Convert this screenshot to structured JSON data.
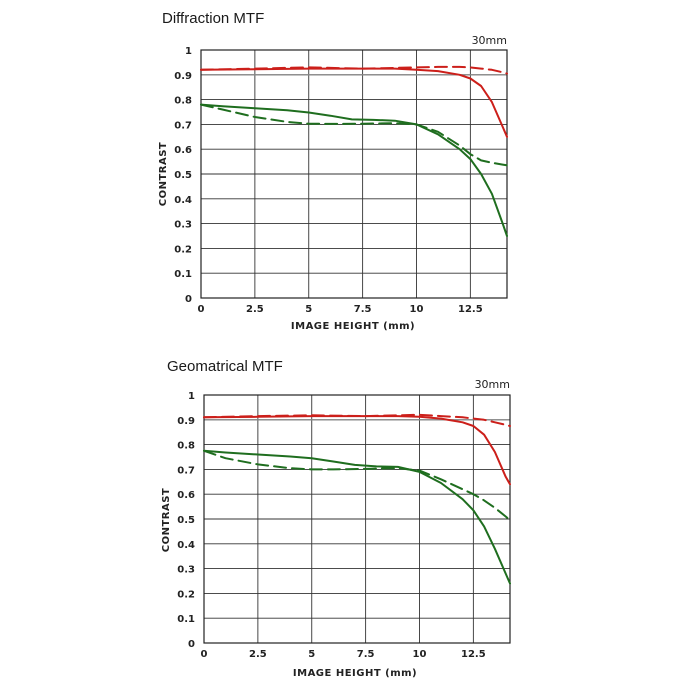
{
  "colors": {
    "red": "#cc1f1a",
    "green": "#1f6e1f",
    "grid": "#333333",
    "ref_line": "#888888"
  },
  "chart_data": [
    {
      "type": "line",
      "title": "Diffraction MTF",
      "corner_label": "30mm",
      "xlabel": "IMAGE HEIGHT (mm)",
      "ylabel": "CONTRAST",
      "xlim": [
        0,
        14.2
      ],
      "ylim": [
        0,
        1
      ],
      "xticks": [
        "0",
        "2.5",
        "5",
        "7.5",
        "10",
        "12.5"
      ],
      "xtick_values": [
        0,
        2.5,
        5,
        7.5,
        10,
        12.5
      ],
      "yticks": [
        "0",
        "0.1",
        "0.2",
        "0.3",
        "0.4",
        "0.5",
        "0.6",
        "0.7",
        "0.8",
        "0.9",
        "1"
      ],
      "grid": true,
      "reference_y": 0.9,
      "series": [
        {
          "color": "red",
          "dash": false,
          "x": [
            0,
            2.5,
            5,
            7.5,
            9,
            10,
            11,
            12,
            12.5,
            13,
            13.5,
            14,
            14.2
          ],
          "y": [
            0.92,
            0.922,
            0.925,
            0.925,
            0.925,
            0.92,
            0.915,
            0.9,
            0.885,
            0.855,
            0.79,
            0.69,
            0.65
          ]
        },
        {
          "color": "red",
          "dash": true,
          "x": [
            0,
            2.5,
            5,
            7.5,
            9,
            10,
            11,
            12,
            12.5,
            13,
            13.5,
            14,
            14.2
          ],
          "y": [
            0.92,
            0.925,
            0.93,
            0.925,
            0.928,
            0.93,
            0.932,
            0.932,
            0.93,
            0.925,
            0.92,
            0.91,
            0.905
          ]
        },
        {
          "color": "green",
          "dash": false,
          "x": [
            0,
            1,
            2.5,
            4,
            5,
            6,
            7,
            8,
            9,
            10,
            11,
            12,
            12.5,
            13,
            13.5,
            14,
            14.2
          ],
          "y": [
            0.78,
            0.773,
            0.765,
            0.757,
            0.748,
            0.735,
            0.72,
            0.718,
            0.715,
            0.7,
            0.66,
            0.6,
            0.56,
            0.5,
            0.42,
            0.3,
            0.25
          ]
        },
        {
          "color": "green",
          "dash": true,
          "x": [
            0,
            1,
            2.5,
            4,
            5,
            6,
            7.5,
            9,
            10,
            11,
            12,
            12.5,
            13,
            13.5,
            14,
            14.2
          ],
          "y": [
            0.78,
            0.76,
            0.73,
            0.71,
            0.703,
            0.702,
            0.703,
            0.705,
            0.7,
            0.67,
            0.615,
            0.58,
            0.555,
            0.545,
            0.538,
            0.535
          ]
        }
      ]
    },
    {
      "type": "line",
      "title": "Geomatrical MTF",
      "corner_label": "30mm",
      "xlabel": "IMAGE HEIGHT (mm)",
      "ylabel": "CONTRAST",
      "xlim": [
        0,
        14.2
      ],
      "ylim": [
        0,
        1
      ],
      "xticks": [
        "0",
        "2.5",
        "5",
        "7.5",
        "10",
        "12.5"
      ],
      "xtick_values": [
        0,
        2.5,
        5,
        7.5,
        10,
        12.5
      ],
      "yticks": [
        "0",
        "0.1",
        "0.2",
        "0.3",
        "0.4",
        "0.5",
        "0.6",
        "0.7",
        "0.8",
        "0.9",
        "1"
      ],
      "grid": true,
      "reference_y": 0.9,
      "series": [
        {
          "color": "red",
          "dash": false,
          "x": [
            0,
            2.5,
            5,
            7.5,
            9,
            10,
            11,
            12,
            12.5,
            13,
            13.5,
            14,
            14.2
          ],
          "y": [
            0.91,
            0.912,
            0.915,
            0.915,
            0.915,
            0.912,
            0.905,
            0.89,
            0.875,
            0.84,
            0.77,
            0.67,
            0.64
          ]
        },
        {
          "color": "red",
          "dash": true,
          "x": [
            0,
            2.5,
            5,
            7.5,
            9,
            10,
            11,
            12,
            12.5,
            13,
            13.5,
            14,
            14.2
          ],
          "y": [
            0.91,
            0.915,
            0.918,
            0.915,
            0.918,
            0.92,
            0.915,
            0.91,
            0.905,
            0.9,
            0.89,
            0.88,
            0.875
          ]
        },
        {
          "color": "green",
          "dash": false,
          "x": [
            0,
            1,
            2.5,
            4,
            5,
            6,
            7,
            8,
            9,
            10,
            11,
            12,
            12.5,
            13,
            13.5,
            14,
            14.2
          ],
          "y": [
            0.775,
            0.768,
            0.76,
            0.752,
            0.745,
            0.732,
            0.718,
            0.712,
            0.71,
            0.69,
            0.645,
            0.58,
            0.535,
            0.47,
            0.38,
            0.28,
            0.24
          ]
        },
        {
          "color": "green",
          "dash": true,
          "x": [
            0,
            1,
            2.5,
            4,
            5,
            6,
            7.5,
            9,
            10,
            11,
            12,
            12.5,
            13,
            13.5,
            14,
            14.2
          ],
          "y": [
            0.775,
            0.745,
            0.72,
            0.705,
            0.7,
            0.7,
            0.702,
            0.705,
            0.695,
            0.66,
            0.62,
            0.6,
            0.575,
            0.545,
            0.51,
            0.495
          ]
        }
      ]
    }
  ]
}
